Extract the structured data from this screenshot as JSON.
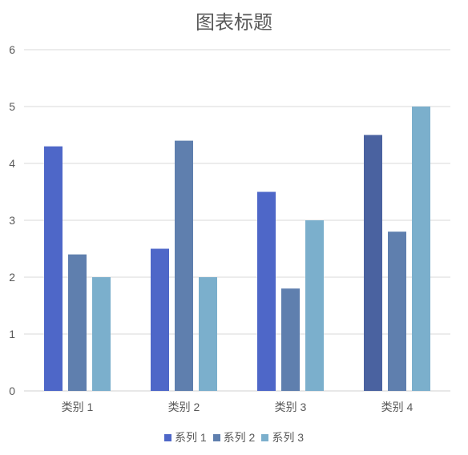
{
  "chart_data": {
    "type": "bar",
    "title": "图表标题",
    "categories": [
      "类别 1",
      "类别 2",
      "类别 3",
      "类别 4"
    ],
    "series": [
      {
        "name": "系列 1",
        "values": [
          4.3,
          2.5,
          3.5,
          4.5
        ],
        "color": "#4e67c8"
      },
      {
        "name": "系列 2",
        "values": [
          2.4,
          4.4,
          1.8,
          2.8
        ],
        "color": "#5f7fae"
      },
      {
        "name": "系列 3",
        "values": [
          2.0,
          2.0,
          3.0,
          5.0
        ],
        "color": "#7bafcc"
      }
    ],
    "bar_overrides": [
      {
        "series": 0,
        "category": 3,
        "color": "#4a62a0"
      }
    ],
    "ylim": [
      0,
      6
    ],
    "yticks": [
      "0",
      "1",
      "2",
      "3",
      "4",
      "5",
      "6"
    ],
    "grid": true,
    "legend": "bottom"
  }
}
